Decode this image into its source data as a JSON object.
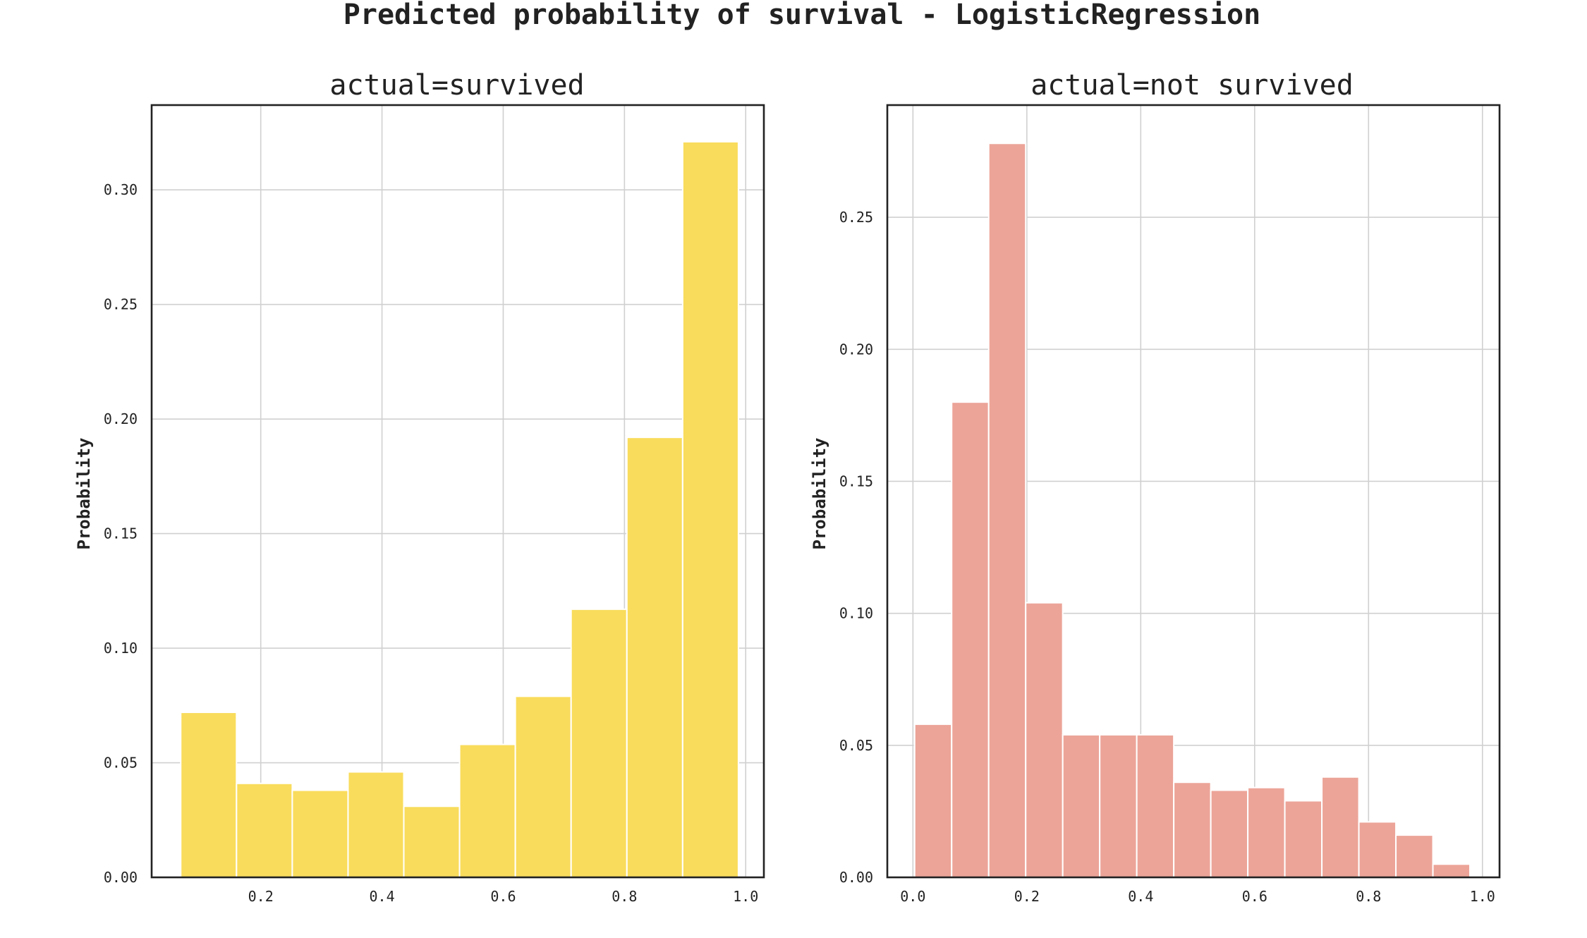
{
  "figure": {
    "suptitle": "Predicted probability of survival - LogisticRegression"
  },
  "chart_data": [
    {
      "type": "bar",
      "title": "actual=survived",
      "xlabel": "",
      "ylabel": "Probability",
      "color": "#f9dc5c",
      "xlim": [
        0.02,
        1.03
      ],
      "ylim": [
        0,
        0.337
      ],
      "x_ticks": [
        0.2,
        0.4,
        0.6,
        0.8,
        1.0
      ],
      "x_tick_labels": [
        "0.2",
        "0.4",
        "0.6",
        "0.8",
        "1.0"
      ],
      "y_ticks": [
        0.0,
        0.05,
        0.1,
        0.15,
        0.2,
        0.25,
        0.3
      ],
      "y_tick_labels": [
        "0.00",
        "0.05",
        "0.10",
        "0.15",
        "0.20",
        "0.25",
        "0.30"
      ],
      "grid": true,
      "bins": [
        {
          "x0": 0.068,
          "x1": 0.16,
          "value": 0.072
        },
        {
          "x0": 0.16,
          "x1": 0.252,
          "value": 0.041
        },
        {
          "x0": 0.252,
          "x1": 0.344,
          "value": 0.038
        },
        {
          "x0": 0.344,
          "x1": 0.436,
          "value": 0.046
        },
        {
          "x0": 0.436,
          "x1": 0.528,
          "value": 0.031
        },
        {
          "x0": 0.528,
          "x1": 0.62,
          "value": 0.058
        },
        {
          "x0": 0.62,
          "x1": 0.712,
          "value": 0.079
        },
        {
          "x0": 0.712,
          "x1": 0.804,
          "value": 0.117
        },
        {
          "x0": 0.804,
          "x1": 0.896,
          "value": 0.192
        },
        {
          "x0": 0.896,
          "x1": 0.988,
          "value": 0.321
        }
      ]
    },
    {
      "type": "bar",
      "title": "actual=not survived",
      "xlabel": "",
      "ylabel": "Probability",
      "color": "#eca498",
      "xlim": [
        -0.045,
        1.03
      ],
      "ylim": [
        0,
        0.2925
      ],
      "x_ticks": [
        0.0,
        0.2,
        0.4,
        0.6,
        0.8,
        1.0
      ],
      "x_tick_labels": [
        "0.0",
        "0.2",
        "0.4",
        "0.6",
        "0.8",
        "1.0"
      ],
      "y_ticks": [
        0.0,
        0.05,
        0.1,
        0.15,
        0.2,
        0.25
      ],
      "y_tick_labels": [
        "0.00",
        "0.05",
        "0.10",
        "0.15",
        "0.20",
        "0.25"
      ],
      "grid": true,
      "bins": [
        {
          "x0": 0.003,
          "x1": 0.068,
          "value": 0.058
        },
        {
          "x0": 0.068,
          "x1": 0.133,
          "value": 0.18
        },
        {
          "x0": 0.133,
          "x1": 0.198,
          "value": 0.278
        },
        {
          "x0": 0.198,
          "x1": 0.263,
          "value": 0.104
        },
        {
          "x0": 0.263,
          "x1": 0.328,
          "value": 0.054
        },
        {
          "x0": 0.328,
          "x1": 0.393,
          "value": 0.054
        },
        {
          "x0": 0.393,
          "x1": 0.458,
          "value": 0.054
        },
        {
          "x0": 0.458,
          "x1": 0.523,
          "value": 0.036
        },
        {
          "x0": 0.523,
          "x1": 0.588,
          "value": 0.033
        },
        {
          "x0": 0.588,
          "x1": 0.653,
          "value": 0.034
        },
        {
          "x0": 0.653,
          "x1": 0.718,
          "value": 0.029
        },
        {
          "x0": 0.718,
          "x1": 0.783,
          "value": 0.038
        },
        {
          "x0": 0.783,
          "x1": 0.848,
          "value": 0.021
        },
        {
          "x0": 0.848,
          "x1": 0.913,
          "value": 0.016
        },
        {
          "x0": 0.913,
          "x1": 0.978,
          "value": 0.005
        }
      ]
    }
  ]
}
